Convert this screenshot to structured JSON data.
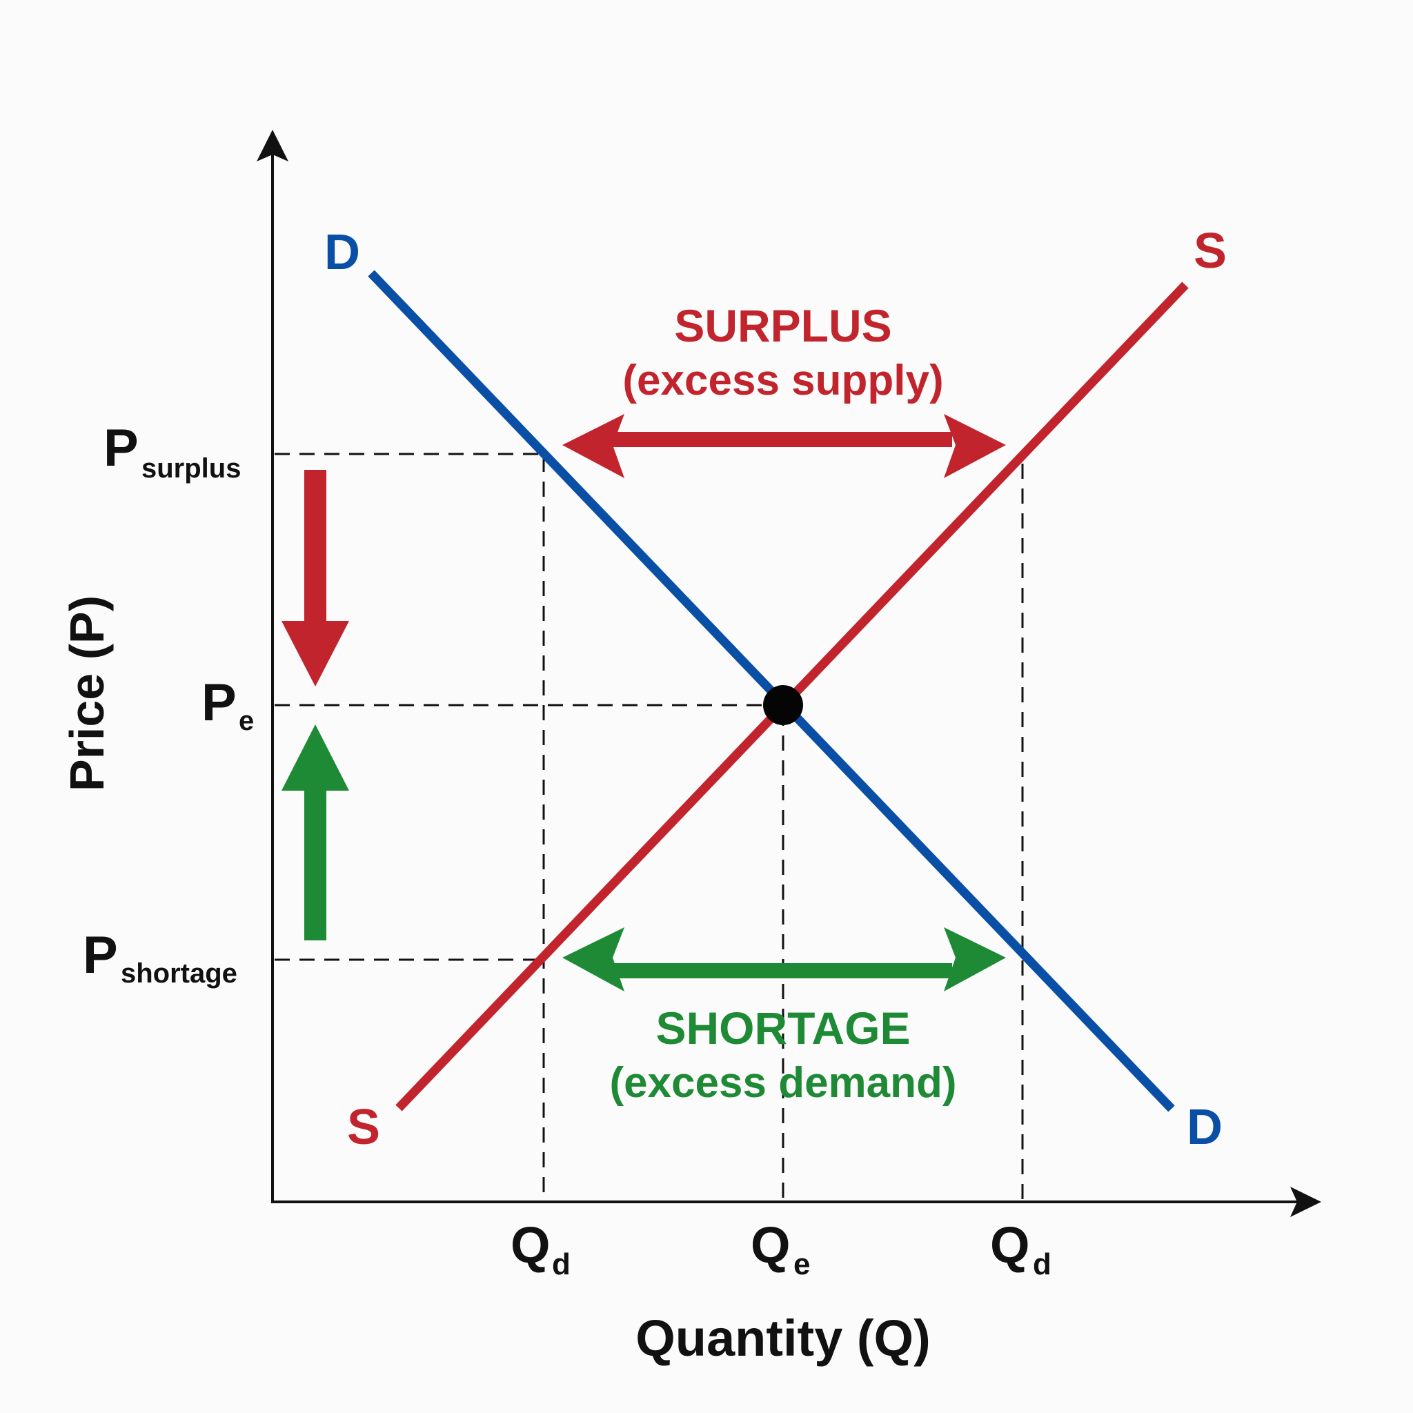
{
  "axes": {
    "y_label": "Price (P)",
    "x_label": "Quantity (Q)"
  },
  "price_levels": {
    "surplus": {
      "main": "P",
      "sub": "surplus"
    },
    "equilibrium": {
      "main": "P",
      "sub": "e"
    },
    "shortage": {
      "main": "P",
      "sub": "shortage"
    }
  },
  "quantity_levels": {
    "left": {
      "main": "Q",
      "sub": "d"
    },
    "equilibrium": {
      "main": "Q",
      "sub": "e"
    },
    "right": {
      "main": "Q",
      "sub": "d"
    }
  },
  "curves": {
    "demand_label": "D",
    "supply_label": "S"
  },
  "annotations": {
    "surplus_title": "SURPLUS",
    "surplus_sub": "(excess supply)",
    "shortage_title": "SHORTAGE",
    "shortage_sub": "(excess demand)"
  },
  "colors": {
    "demand": "#0a4fa6",
    "supply": "#c1242c",
    "shortage": "#1f8a35",
    "axis": "#111111"
  }
}
